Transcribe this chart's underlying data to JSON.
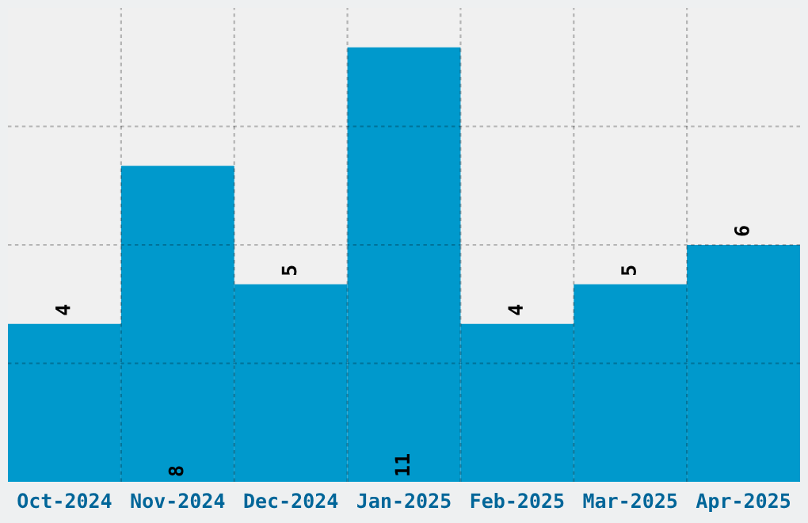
{
  "chart_data": {
    "type": "bar",
    "categories": [
      "Oct-2024",
      "Nov-2024",
      "Dec-2024",
      "Jan-2025",
      "Feb-2025",
      "Mar-2025",
      "Apr-2025"
    ],
    "values": [
      4,
      8,
      5,
      11,
      4,
      5,
      6
    ],
    "color": "#0099cc",
    "ylim": [
      0,
      12
    ],
    "yticks": [
      {
        "value": 3,
        "label": null
      },
      {
        "value": 6,
        "label": null
      },
      {
        "value": 9,
        "label": null
      }
    ],
    "tick_labels": "x",
    "grid": true,
    "data_labels": true
  }
}
